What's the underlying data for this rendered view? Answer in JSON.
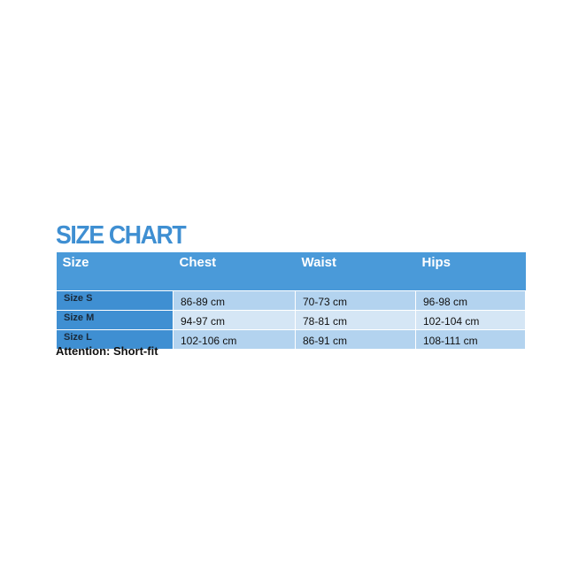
{
  "title": "SIZE CHART",
  "headers": [
    "Size",
    "Chest",
    "Waist",
    "Hips"
  ],
  "rows": [
    {
      "size": "Size S",
      "chest": "86-89 cm",
      "waist": "70-73 cm",
      "hips": "96-98 cm"
    },
    {
      "size": "Size M",
      "chest": "94-97 cm",
      "waist": "78-81 cm",
      "hips": "102-104 cm"
    },
    {
      "size": "Size L",
      "chest": "102-106 cm",
      "waist": "86-91 cm",
      "hips": "108-111 cm"
    }
  ],
  "note": "Attention: Short-fit",
  "colors": {
    "accent": "#3f8fd2",
    "header": "#4a9ad9",
    "row_light": "#b3d3ef",
    "row_lighter": "#d5e6f5"
  }
}
